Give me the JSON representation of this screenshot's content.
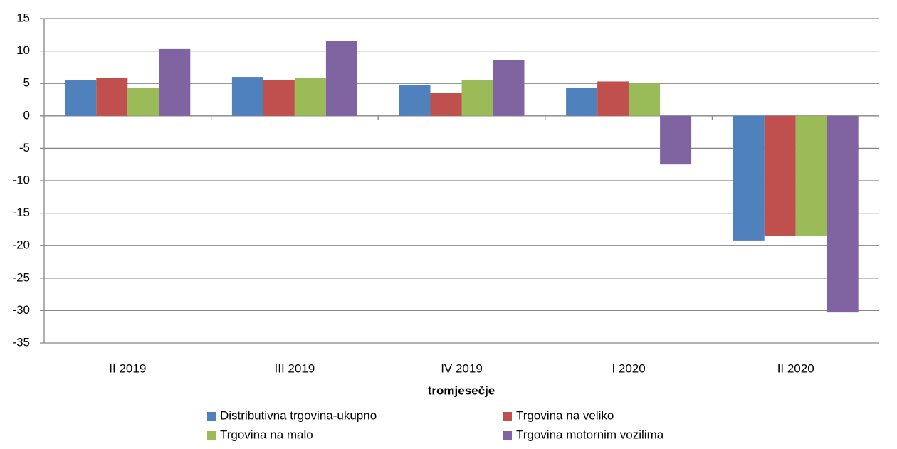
{
  "chart_data": {
    "type": "bar",
    "xlabel": "tromjesečje",
    "categories": [
      "II 2019",
      "III 2019",
      "IV 2019",
      "I 2020",
      "II 2020"
    ],
    "series": [
      {
        "name": "Distributivna trgovina-ukupno",
        "color": "#4f81bd",
        "values": [
          5.5,
          6.0,
          4.8,
          4.3,
          -19.2
        ]
      },
      {
        "name": "Trgovina na veliko",
        "color": "#c0504d",
        "values": [
          5.8,
          5.5,
          3.6,
          5.3,
          -18.5
        ]
      },
      {
        "name": "Trgovina na malo",
        "color": "#9bbb59",
        "values": [
          4.3,
          5.8,
          5.5,
          5.0,
          -18.5
        ]
      },
      {
        "name": "Trgovina motornim vozilima",
        "color": "#8064a2",
        "values": [
          10.3,
          11.5,
          8.6,
          -7.5,
          -30.3
        ]
      }
    ],
    "ylim": [
      -35,
      15
    ],
    "yticks": [
      -35,
      -30,
      -25,
      -20,
      -15,
      -10,
      -5,
      0,
      5,
      10,
      15
    ],
    "grid": true
  }
}
